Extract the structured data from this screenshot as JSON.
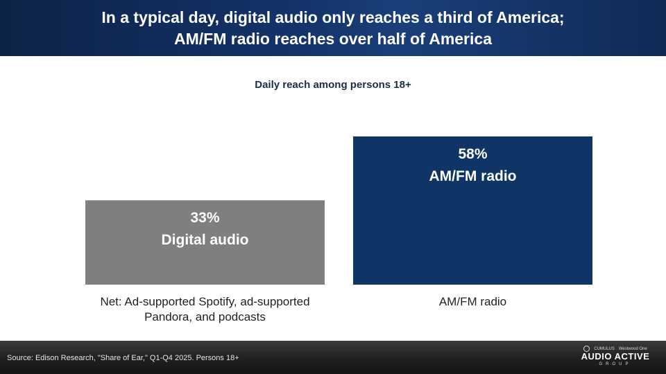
{
  "header": {
    "title_line1": "In a typical day, digital audio only reaches a third of America;",
    "title_line2": "AM/FM radio reaches over half of America"
  },
  "colors": {
    "header_bg": "#14336a",
    "digital_bar": "#7f7f7f",
    "amfm_bar": "#0e3566"
  },
  "chart_data": {
    "type": "bar",
    "title": "Daily reach among persons 18+",
    "categories": [
      "Net: Ad-supported Spotify, ad-supported Pandora, and podcasts",
      "AM/FM radio"
    ],
    "values": [
      33,
      58
    ],
    "value_labels": [
      "33%",
      "58%"
    ],
    "bar_labels": [
      "Digital audio",
      "AM/FM radio"
    ],
    "category_label_lines": [
      [
        "Net: Ad-supported Spotify, ad-supported",
        "Pandora, and podcasts"
      ],
      [
        "AM/FM radio"
      ]
    ],
    "colors": [
      "#7f7f7f",
      "#0e3566"
    ],
    "ylim": [
      0,
      100
    ],
    "grid": false
  },
  "footer": {
    "source": "Source: Edison Research, \"Share of Ear,\" Q1-Q4 2025. Persons 18+",
    "logo_top_left": "CUMULUS",
    "logo_top_right": "Westwood One",
    "logo_brand": "AUDIO ACTIVE",
    "logo_group": "GROUP"
  }
}
